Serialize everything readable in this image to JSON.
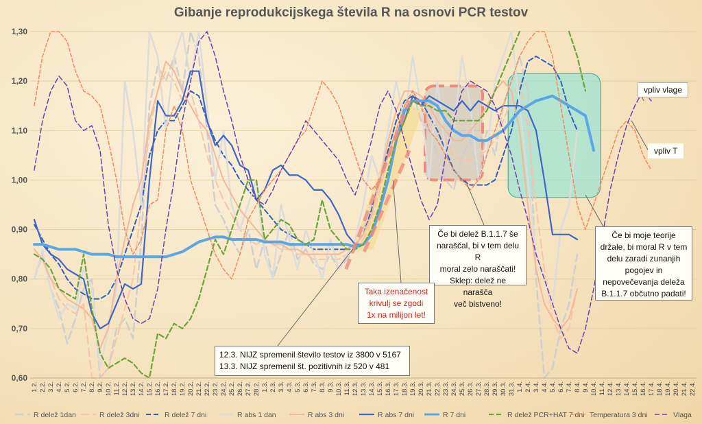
{
  "chart_data": {
    "type": "line",
    "title": "Gibanje reprodukcijskega števila R na osnovi PCR testov",
    "xlabel": "",
    "ylabel": "",
    "ylim": [
      0.6,
      1.3
    ],
    "yticks": [
      "0,60",
      "0,70",
      "0,80",
      "0,90",
      "1,00",
      "1,10",
      "1,20",
      "1,30"
    ],
    "ytick_values": [
      0.6,
      0.7,
      0.8,
      0.9,
      1.0,
      1.1,
      1.2,
      1.3
    ],
    "grid": true,
    "legend_position": "bottom",
    "x": [
      "1.2.",
      "2.2.",
      "3.2.",
      "4.2.",
      "5.2.",
      "6.2.",
      "7.2.",
      "8.2.",
      "9.2.",
      "10.2.",
      "11.2.",
      "12.2.",
      "13.2.",
      "14.2.",
      "15.2.",
      "16.2.",
      "17.2.",
      "18.2.",
      "19.2.",
      "20.2.",
      "21.2.",
      "22.2.",
      "23.2.",
      "24.2.",
      "25.2.",
      "26.2.",
      "27.2.",
      "28.2.",
      "1.3.",
      "2.3.",
      "3.3.",
      "4.3.",
      "5.3.",
      "6.3.",
      "7.3.",
      "8.3.",
      "9.3.",
      "10.3.",
      "11.3.",
      "12.3.",
      "13.3.",
      "14.3.",
      "15.3.",
      "16.3.",
      "17.3.",
      "18.3.",
      "19.3.",
      "20.3.",
      "21.3.",
      "22.3.",
      "23.3.",
      "24.3.",
      "25.3.",
      "26.3.",
      "27.3.",
      "28.3.",
      "29.3.",
      "30.3.",
      "31.3.",
      "1.4.",
      "2.4.",
      "3.4.",
      "4.4.",
      "5.4.",
      "6.4.",
      "7.4.",
      "8.4.",
      "9.4.",
      "10.4.",
      "11.4.",
      "12.4.",
      "13.4.",
      "14.4.",
      "15.4.",
      "16.4.",
      "17.4.",
      "18.4.",
      "19.4.",
      "20.4.",
      "21.4.",
      "22.4."
    ],
    "series": [
      {
        "name": "R delež 1dan",
        "color": "#cfcfcf",
        "dash": "long",
        "width": 2.5,
        "values": [
          0.8,
          0.85,
          0.78,
          0.74,
          0.67,
          0.72,
          0.78,
          0.8,
          0.6,
          0.62,
          0.7,
          0.72,
          0.68,
          0.88,
          1.15,
          1.23,
          1.2,
          1.25,
          1.18,
          1.3,
          1.25,
          1.1,
          0.95,
          0.92,
          0.88,
          0.85,
          0.9,
          0.82,
          0.88,
          0.8,
          0.85,
          0.9,
          0.84,
          0.86,
          0.83,
          0.82,
          0.85,
          0.82,
          0.84,
          0.86,
          0.9,
          0.95,
          1.0,
          1.05,
          1.12,
          1.15,
          1.18,
          1.12,
          1.1,
          1.05,
          1.0,
          0.98,
          1.05,
          1.08,
          1.0,
          1.1,
          1.05,
          1.15,
          1.2,
          1.25,
          1.18,
          0.8,
          0.6,
          0.62,
          0.7,
          0.75,
          0.85,
          null,
          null,
          null,
          null,
          null,
          null,
          null,
          null,
          null,
          null,
          null,
          null,
          null,
          null
        ]
      },
      {
        "name": "R delež 3dni",
        "color": "#f7c4a8",
        "dash": "long",
        "width": 2,
        "values": [
          0.86,
          0.84,
          0.8,
          0.76,
          0.74,
          0.73,
          0.75,
          0.6,
          0.6,
          0.62,
          0.68,
          0.74,
          0.8,
          0.95,
          1.1,
          1.18,
          1.22,
          1.2,
          1.16,
          1.18,
          1.12,
          1.05,
          1.0,
          0.96,
          0.93,
          0.9,
          0.88,
          0.87,
          0.88,
          0.87,
          0.86,
          0.86,
          0.85,
          0.85,
          0.84,
          0.84,
          0.84,
          0.84,
          0.85,
          0.86,
          0.88,
          0.92,
          0.98,
          1.05,
          1.1,
          1.14,
          1.16,
          1.15,
          1.12,
          1.1,
          1.08,
          1.05,
          1.04,
          1.04,
          1.05,
          1.06,
          1.08,
          1.12,
          1.16,
          1.2,
          1.1,
          0.95,
          0.82,
          0.72,
          0.68,
          0.7,
          0.78,
          null,
          null,
          null,
          null,
          null,
          null,
          null,
          null,
          null,
          null,
          null,
          null,
          null,
          null
        ]
      },
      {
        "name": "R delež 7 dni",
        "color": "#2f5fbd",
        "dash": "medium",
        "width": 2,
        "values": [
          0.91,
          0.88,
          0.85,
          0.83,
          0.8,
          0.78,
          0.77,
          0.76,
          0.76,
          0.77,
          0.8,
          0.85,
          0.9,
          0.95,
          1.05,
          1.1,
          1.12,
          1.12,
          1.15,
          1.18,
          1.17,
          1.12,
          1.08,
          1.05,
          1.03,
          1.0,
          0.98,
          0.96,
          0.94,
          0.92,
          0.9,
          0.89,
          0.88,
          0.87,
          0.86,
          0.86,
          0.86,
          0.86,
          0.86,
          0.87,
          0.89,
          0.94,
          1.0,
          1.06,
          1.12,
          1.16,
          1.17,
          1.16,
          1.13,
          1.1,
          1.06,
          1.02,
          1.0,
          0.99,
          0.99,
          0.99,
          1.0,
          1.05,
          1.1,
          1.18,
          1.24,
          1.25,
          1.24,
          1.23,
          1.2,
          1.14,
          1.1,
          null,
          null,
          null,
          null,
          null,
          null,
          null,
          null,
          null,
          null,
          null,
          null,
          null,
          null
        ]
      },
      {
        "name": "R abs 1 dan",
        "color": "#dcdcdc",
        "dash": "solid",
        "width": 2.5,
        "values": [
          0.8,
          0.86,
          0.78,
          0.72,
          0.75,
          0.74,
          0.82,
          0.78,
          0.62,
          0.7,
          0.78,
          1.2,
          1.1,
          0.95,
          1.3,
          1.25,
          1.1,
          1.25,
          1.3,
          1.2,
          1.3,
          1.15,
          1.0,
          1.1,
          0.95,
          0.9,
          0.95,
          1.0,
          0.85,
          0.8,
          0.95,
          0.88,
          0.82,
          0.9,
          0.85,
          0.8,
          0.88,
          0.82,
          0.85,
          0.88,
          0.95,
          1.05,
          1.0,
          1.1,
          1.2,
          1.12,
          1.25,
          1.15,
          1.0,
          1.2,
          1.05,
          1.1,
          1.25,
          1.15,
          1.0,
          1.05,
          1.2,
          1.25,
          1.3,
          1.15,
          1.0,
          0.85,
          0.8,
          0.75,
          0.9,
          0.95,
          1.1,
          null,
          null,
          null,
          null,
          null,
          null,
          null,
          null,
          null,
          null,
          null,
          null,
          null,
          null
        ]
      },
      {
        "name": "R abs 3 dni",
        "color": "#f4b898",
        "dash": "solid",
        "width": 2,
        "values": [
          0.86,
          0.84,
          0.8,
          0.78,
          0.76,
          0.75,
          0.74,
          0.72,
          0.66,
          0.7,
          0.8,
          0.88,
          0.95,
          1.0,
          1.12,
          1.18,
          1.24,
          1.22,
          1.18,
          1.15,
          1.12,
          1.1,
          1.05,
          1.0,
          0.97,
          0.94,
          0.92,
          0.9,
          0.88,
          0.87,
          0.87,
          0.86,
          0.86,
          0.85,
          0.85,
          0.85,
          0.85,
          0.85,
          0.86,
          0.87,
          0.89,
          0.93,
          1.0,
          1.08,
          1.14,
          1.18,
          1.18,
          1.17,
          1.15,
          1.12,
          1.1,
          1.08,
          1.08,
          1.1,
          1.12,
          1.15,
          1.18,
          1.2,
          1.18,
          1.1,
          0.95,
          0.82,
          0.75,
          0.72,
          0.7,
          0.72,
          0.78,
          null,
          null,
          null,
          null,
          null,
          null,
          null,
          null,
          null,
          null,
          null,
          null,
          null,
          null
        ]
      },
      {
        "name": "R abs 7 dni",
        "color": "#3d66c6",
        "dash": "solid",
        "width": 2.2,
        "values": [
          0.92,
          0.87,
          0.85,
          0.84,
          0.82,
          0.81,
          0.8,
          0.73,
          0.7,
          0.71,
          0.75,
          0.79,
          0.78,
          0.79,
          1.0,
          1.16,
          1.13,
          1.13,
          1.16,
          1.22,
          1.22,
          1.12,
          1.07,
          1.09,
          1.07,
          1.03,
          1.02,
          0.96,
          0.98,
          1.02,
          1.03,
          1.01,
          1.01,
          1.0,
          0.98,
          0.98,
          0.96,
          0.93,
          0.89,
          0.87,
          0.87,
          0.89,
          0.94,
          1.0,
          1.08,
          1.12,
          1.17,
          1.15,
          1.17,
          1.16,
          1.15,
          1.14,
          1.16,
          1.14,
          1.16,
          1.15,
          1.14,
          1.15,
          1.15,
          1.15,
          1.14,
          1.1,
          1.0,
          0.89,
          0.89,
          0.89,
          0.88,
          null,
          null,
          null,
          null,
          null,
          null,
          null,
          null,
          null,
          null,
          null,
          null,
          null,
          null
        ]
      },
      {
        "name": "R 7 dni",
        "color": "#5aa7e8",
        "dash": "solid",
        "width": 4,
        "values": [
          0.87,
          0.87,
          0.865,
          0.86,
          0.86,
          0.86,
          0.855,
          0.85,
          0.85,
          0.85,
          0.845,
          0.845,
          0.845,
          0.845,
          0.845,
          0.845,
          0.845,
          0.85,
          0.855,
          0.865,
          0.875,
          0.88,
          0.885,
          0.885,
          0.88,
          0.88,
          0.88,
          0.88,
          0.875,
          0.875,
          0.875,
          0.87,
          0.87,
          0.87,
          0.87,
          0.87,
          0.87,
          0.87,
          0.87,
          0.865,
          0.87,
          0.89,
          0.94,
          1.0,
          1.08,
          1.14,
          1.16,
          1.16,
          1.16,
          1.15,
          1.12,
          1.1,
          1.09,
          1.09,
          1.08,
          1.08,
          1.09,
          1.1,
          1.12,
          1.14,
          1.15,
          1.16,
          1.165,
          1.17,
          1.16,
          1.15,
          1.14,
          1.13,
          1.06,
          null,
          null,
          null,
          null,
          null,
          null,
          null,
          null,
          null,
          null,
          null,
          null
        ]
      },
      {
        "name": "R delež PCR+HAT 7 dni",
        "color": "#6aa43a",
        "dash": "medium",
        "width": 2.2,
        "values": [
          0.85,
          0.84,
          0.82,
          0.78,
          0.77,
          0.76,
          0.85,
          0.74,
          0.65,
          0.62,
          0.63,
          0.64,
          0.63,
          0.61,
          0.6,
          0.69,
          0.68,
          0.71,
          0.7,
          0.72,
          0.76,
          0.82,
          0.88,
          0.85,
          0.9,
          0.95,
          1.0,
          1.0,
          0.88,
          0.9,
          0.92,
          0.91,
          0.88,
          0.87,
          0.88,
          0.96,
          0.9,
          0.88,
          0.86,
          0.86,
          0.87,
          0.9,
          0.95,
          1.02,
          1.08,
          1.12,
          1.16,
          1.15,
          1.15,
          1.14,
          1.14,
          1.12,
          1.12,
          1.12,
          1.12,
          1.14,
          1.18,
          1.22,
          1.26,
          1.3,
          null,
          null,
          null,
          null,
          null,
          1.3,
          1.25,
          1.18,
          null,
          null,
          null,
          null,
          null,
          null,
          null,
          null,
          null,
          null,
          null,
          null,
          null
        ]
      },
      {
        "name": "Temperatura 3 dni",
        "color": "#f08a60",
        "dash": "short",
        "width": 1.5,
        "values": [
          1.15,
          1.25,
          1.3,
          1.3,
          1.28,
          1.22,
          1.18,
          1.17,
          1.15,
          1.08,
          1.0,
          0.9,
          0.85,
          0.88,
          0.95,
          0.96,
          1.1,
          1.15,
          1.1,
          1.0,
          0.95,
          0.9,
          0.85,
          0.82,
          0.8,
          0.85,
          0.92,
          0.95,
          0.98,
          1.0,
          1.02,
          1.05,
          1.08,
          1.1,
          1.15,
          1.2,
          1.18,
          1.15,
          1.1,
          1.05,
          1.0,
          0.98,
          1.0,
          1.05,
          1.1,
          1.15,
          1.18,
          1.15,
          1.1,
          1.08,
          1.05,
          1.02,
          1.0,
          0.98,
          1.0,
          1.05,
          1.1,
          1.15,
          1.2,
          1.25,
          1.28,
          1.3,
          1.3,
          1.25,
          1.15,
          1.05,
          0.95,
          0.9,
          0.95,
          1.0,
          1.05,
          1.1,
          1.12,
          1.1,
          1.05,
          1.02,
          null,
          null,
          null,
          null,
          null
        ]
      },
      {
        "name": "Vlaga",
        "color": "#6a3fb0",
        "dash": "medium",
        "width": 1.5,
        "values": [
          1.02,
          1.12,
          1.18,
          1.21,
          1.19,
          1.12,
          1.1,
          1.11,
          1.06,
          0.91,
          0.82,
          0.76,
          0.72,
          0.71,
          0.72,
          0.78,
          0.9,
          1.0,
          1.12,
          1.2,
          1.28,
          1.3,
          1.25,
          1.18,
          1.12,
          1.05,
          1.0,
          0.96,
          0.95,
          0.98,
          1.02,
          1.05,
          1.08,
          1.12,
          1.1,
          1.08,
          1.06,
          1.04,
          1.0,
          0.97,
          1.02,
          1.08,
          1.15,
          1.18,
          1.14,
          1.08,
          1.02,
          0.96,
          0.92,
          0.95,
          1.05,
          1.12,
          1.18,
          1.2,
          1.19,
          1.18,
          1.15,
          1.1,
          1.05,
          0.98,
          0.92,
          0.85,
          0.8,
          0.75,
          0.7,
          0.66,
          0.65,
          0.7,
          0.78,
          0.88,
          0.98,
          1.05,
          1.11,
          1.15,
          1.18,
          1.16,
          null,
          null,
          null,
          null,
          null
        ]
      }
    ]
  },
  "callouts": {
    "b117_lines": [
      "Če bi delež B.1.1.7 še",
      "naraščal, bi v tem delu R",
      "moral zelo naraščati!",
      "Sklep: delež ne narašča",
      "več bistveno!"
    ],
    "million_lines": [
      "Taka izenačenost",
      "krivulj se zgodi",
      "1x na milijon let!"
    ],
    "nijz_lines": [
      "12.3. NIJZ spremenil število testov iz 3800 v 5167",
      "13.3. NIJZ spremenil št. pozitivnih iz 520 v 481"
    ],
    "theory_lines": [
      "Če bi moje teorije",
      "držale, bi moral R v tem",
      "delu zaradi zunanjih",
      "pogojev in",
      "nepovečevanja deleža",
      "B.1.1.7 občutno padati!"
    ],
    "vpliv_vlage": "vpliv vlage",
    "vpliv_t": "vpliv T"
  },
  "colors": {
    "background": "#f7e6c4",
    "grid": "#e2cfa8",
    "highlight_yellow": "#f6d88a",
    "highlight_gray": "#b9b9b9",
    "highlight_cyan": "#7fe3da",
    "red_dashed": "#f08a80"
  }
}
